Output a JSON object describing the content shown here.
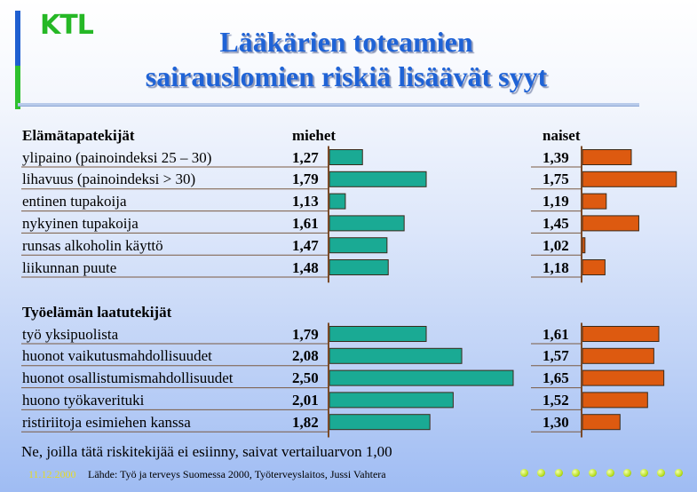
{
  "logo": "KTL",
  "title_line1": "Lääkärien toteamien",
  "title_line2": "sairauslomien riskiä lisäävät syyt",
  "colors": {
    "men": "#1aaa94",
    "women": "#dd5a10",
    "title": "#1f63d6"
  },
  "chart_data": [
    {
      "type": "bar",
      "section": "Elämätapatekijät",
      "categories": [
        "ylipaino (painoindeksi 25 – 30)",
        "lihavuus (painoindeksi > 30)",
        "entinen tupakoija",
        "nykyinen tupakoija",
        "runsas alkoholin käyttö",
        "liikunnan puute"
      ],
      "series": [
        {
          "name": "miehet",
          "values": [
            "1,27",
            "1,79",
            "1,13",
            "1,61",
            "1,47",
            "1,48"
          ]
        },
        {
          "name": "naiset",
          "values": [
            "1,39",
            "1,75",
            "1,19",
            "1,45",
            "1,02",
            "1,18"
          ]
        }
      ],
      "baseline": 1.0
    },
    {
      "type": "bar",
      "section": "Työelämän laatutekijät",
      "categories": [
        "työ yksipuolista",
        "huonot vaikutusmahdollisuudet",
        "huonot osallistumismahdollisuudet",
        "huono työkaverituki",
        "ristiriitoja esimiehen kanssa"
      ],
      "series": [
        {
          "name": "miehet",
          "values": [
            "1,79",
            "2,08",
            "2,50",
            "2,01",
            "1,82"
          ]
        },
        {
          "name": "naiset",
          "values": [
            "1,61",
            "1,57",
            "1,65",
            "1,52",
            "1,30"
          ]
        }
      ],
      "baseline": 1.0
    }
  ],
  "footer_note": "Ne, joilla tätä riskitekijää ei esiinny, saivat vertailuarvon 1,00",
  "footer_date": "11.12.2000",
  "footer_source": "Lähde: Työ ja terveys Suomessa 2000, Työterveyslaitos, Jussi Vahtera"
}
